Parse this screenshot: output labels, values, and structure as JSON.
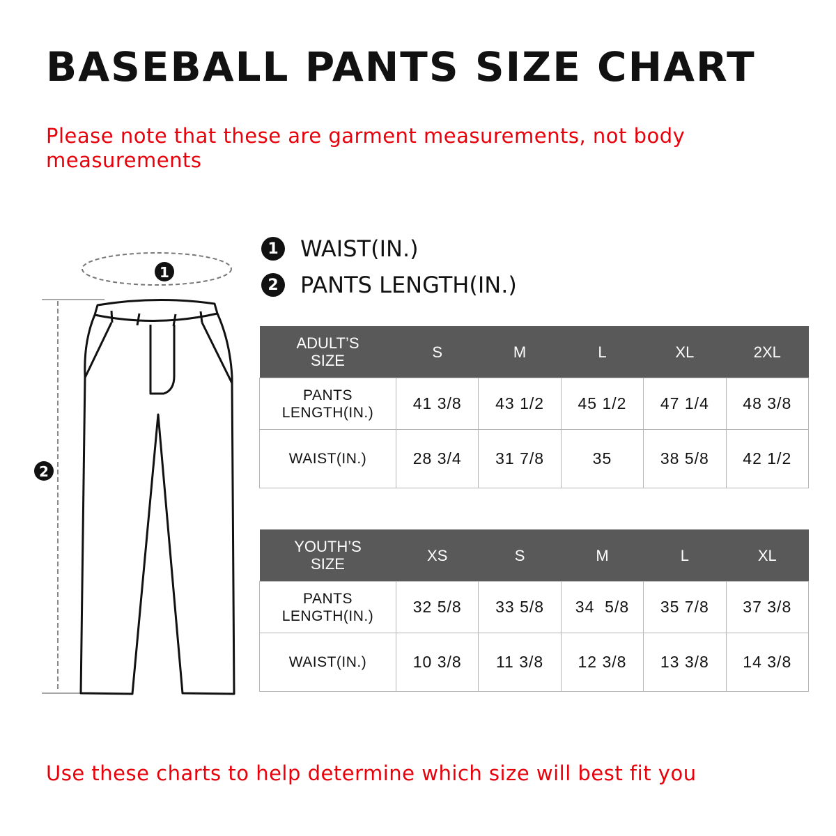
{
  "title": "BASEBALL PANTS SIZE CHART",
  "note": "Please note that these are garment measurements, not body measurements",
  "legend": [
    {
      "marker": "1",
      "label": "WAIST(IN.)"
    },
    {
      "marker": "2",
      "label": "PANTS LENGTH(IN.)"
    }
  ],
  "diagram": {
    "waist_marker": "1",
    "length_marker": "2"
  },
  "adult_table": {
    "header": [
      "ADULT’S SIZE",
      "S",
      "M",
      "L",
      "XL",
      "2XL"
    ],
    "rows": [
      {
        "label": "PANTS LENGTH(IN.)",
        "values": [
          "41 3/8",
          "43 1/2",
          "45 1/2",
          "47 1/4",
          "48 3/8"
        ]
      },
      {
        "label": "WAIST(IN.)",
        "values": [
          "28 3/4",
          "31 7/8",
          "35",
          "38 5/8",
          "42 1/2"
        ]
      }
    ]
  },
  "youth_table": {
    "header": [
      "YOUTH’S SIZE",
      "XS",
      "S",
      "M",
      "L",
      "XL"
    ],
    "rows": [
      {
        "label": "PANTS LENGTH(IN.)",
        "values": [
          "32 5/8",
          "33 5/8",
          "34  5/8",
          "35 7/8",
          "37 3/8"
        ]
      },
      {
        "label": "WAIST(IN.)",
        "values": [
          "10 3/8",
          "11 3/8",
          "12 3/8",
          "13 3/8",
          "14 3/8"
        ]
      }
    ]
  },
  "footer": "Use these charts to help determine which size will best fit you",
  "colors": {
    "accent_red": "#e8000b",
    "header_gray": "#595959"
  }
}
